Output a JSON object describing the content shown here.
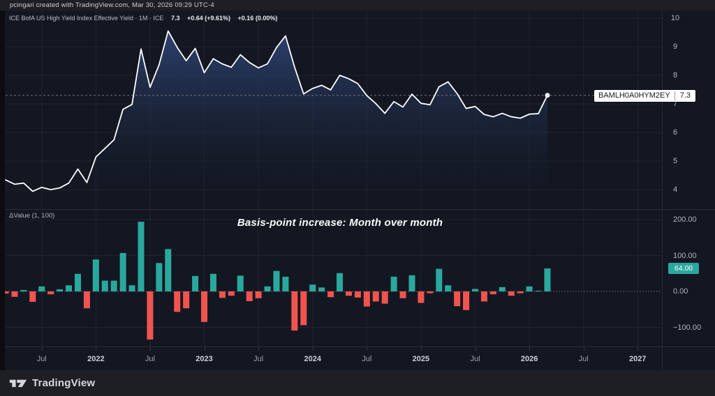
{
  "attribution": "pcingari created with TradingView.com, Mar 30, 2026 09:29 UTC-4",
  "legend": {
    "title": "ICE BofA US High Yield Index Effective Yield · 1M · ICE",
    "last_value": "7.3",
    "change_abs_pct": "+0.64 (+9.61%)",
    "change_2": "+0.16 (0.00%)"
  },
  "price_label": {
    "ticker": "BAMLH0A0HYM2EY",
    "value": "7.3"
  },
  "delta_pane": {
    "indicator_label": "ΔValue (1, 100)",
    "annotation": "Basis-point increase: Month over month",
    "last_delta_badge": "64.00"
  },
  "y_axis_top": [
    "10",
    "9",
    "8",
    "7",
    "6",
    "5",
    "4"
  ],
  "y_axis_bottom": [
    "200.00",
    "100.00",
    "0.00",
    "−100.00"
  ],
  "x_axis": [
    "Jul",
    "2022",
    "Jul",
    "2023",
    "Jul",
    "2024",
    "Jul",
    "2025",
    "Jul",
    "2026",
    "Jul",
    "2027"
  ],
  "footer": {
    "brand": "TradingView"
  },
  "colors": {
    "background": "#131722",
    "strip": "#1D1F23",
    "up": "#2AA89D",
    "down": "#F1544E",
    "line": "#FFFFFF",
    "area_top": "#2E4574",
    "axis_text": "#B2B5BE",
    "price_line": "#6E7178"
  },
  "chart_data": [
    {
      "type": "area",
      "title": "ICE BofA US High Yield Index Effective Yield",
      "interval": "1M",
      "legend_position": "top-left",
      "grid": true,
      "ylim": [
        3.55,
        10.3
      ],
      "y_ticks": [
        4,
        5,
        6,
        7,
        8,
        9,
        10
      ],
      "last": {
        "value": 7.3,
        "change": "+0.64",
        "change_pct": "+9.61%"
      },
      "months": [
        "2021-03",
        "2021-04",
        "2021-05",
        "2021-06",
        "2021-07",
        "2021-08",
        "2021-09",
        "2021-10",
        "2021-11",
        "2021-12",
        "2022-01",
        "2022-02",
        "2022-03",
        "2022-04",
        "2022-05",
        "2022-06",
        "2022-07",
        "2022-08",
        "2022-09",
        "2022-10",
        "2022-11",
        "2022-12",
        "2023-01",
        "2023-02",
        "2023-03",
        "2023-04",
        "2023-05",
        "2023-06",
        "2023-07",
        "2023-08",
        "2023-09",
        "2023-10",
        "2023-11",
        "2023-12",
        "2024-01",
        "2024-02",
        "2024-03",
        "2024-04",
        "2024-05",
        "2024-06",
        "2024-07",
        "2024-08",
        "2024-09",
        "2024-10",
        "2024-11",
        "2024-12",
        "2025-01",
        "2025-02",
        "2025-03",
        "2025-04",
        "2025-05",
        "2025-06",
        "2025-07",
        "2025-08",
        "2025-09",
        "2025-10",
        "2025-11",
        "2025-12",
        "2026-01",
        "2026-02",
        "2026-03"
      ],
      "values": [
        4.34,
        4.19,
        4.23,
        3.94,
        4.08,
        4.0,
        4.06,
        4.23,
        4.72,
        4.25,
        5.14,
        5.44,
        5.74,
        6.81,
        6.98,
        8.92,
        7.58,
        8.37,
        9.55,
        8.98,
        8.51,
        8.94,
        8.09,
        8.58,
        8.4,
        8.28,
        8.72,
        8.45,
        8.26,
        8.4,
        8.97,
        9.38,
        8.29,
        7.35,
        7.54,
        7.65,
        7.49,
        8.0,
        7.88,
        7.71,
        7.29,
        7.01,
        6.67,
        7.08,
        6.89,
        7.34,
        7.02,
        6.97,
        7.6,
        7.77,
        7.36,
        6.84,
        6.91,
        6.63,
        6.55,
        6.67,
        6.55,
        6.5,
        6.64,
        6.66,
        7.3
      ]
    },
    {
      "type": "bar",
      "title": "ΔValue (1, 100)",
      "subtitle": "Basis-point increase: Month over month",
      "grid": true,
      "ylim": [
        -150,
        230
      ],
      "y_ticks": [
        200,
        100,
        0,
        -100
      ],
      "zero_line": "dashed",
      "months_ref": 0,
      "values": [
        -6,
        -15,
        4,
        -29,
        14,
        -8,
        6,
        17,
        49,
        -47,
        89,
        30,
        30,
        107,
        17,
        194,
        -134,
        79,
        118,
        -57,
        -47,
        43,
        -85,
        49,
        -18,
        -12,
        44,
        -27,
        -19,
        14,
        57,
        41,
        -109,
        -94,
        19,
        11,
        -16,
        51,
        -12,
        -17,
        -42,
        -28,
        -34,
        41,
        -19,
        45,
        -32,
        -5,
        63,
        17,
        -41,
        -52,
        7,
        -28,
        -8,
        12,
        -12,
        -5,
        14,
        2,
        64
      ],
      "last_value": 64.0
    }
  ]
}
